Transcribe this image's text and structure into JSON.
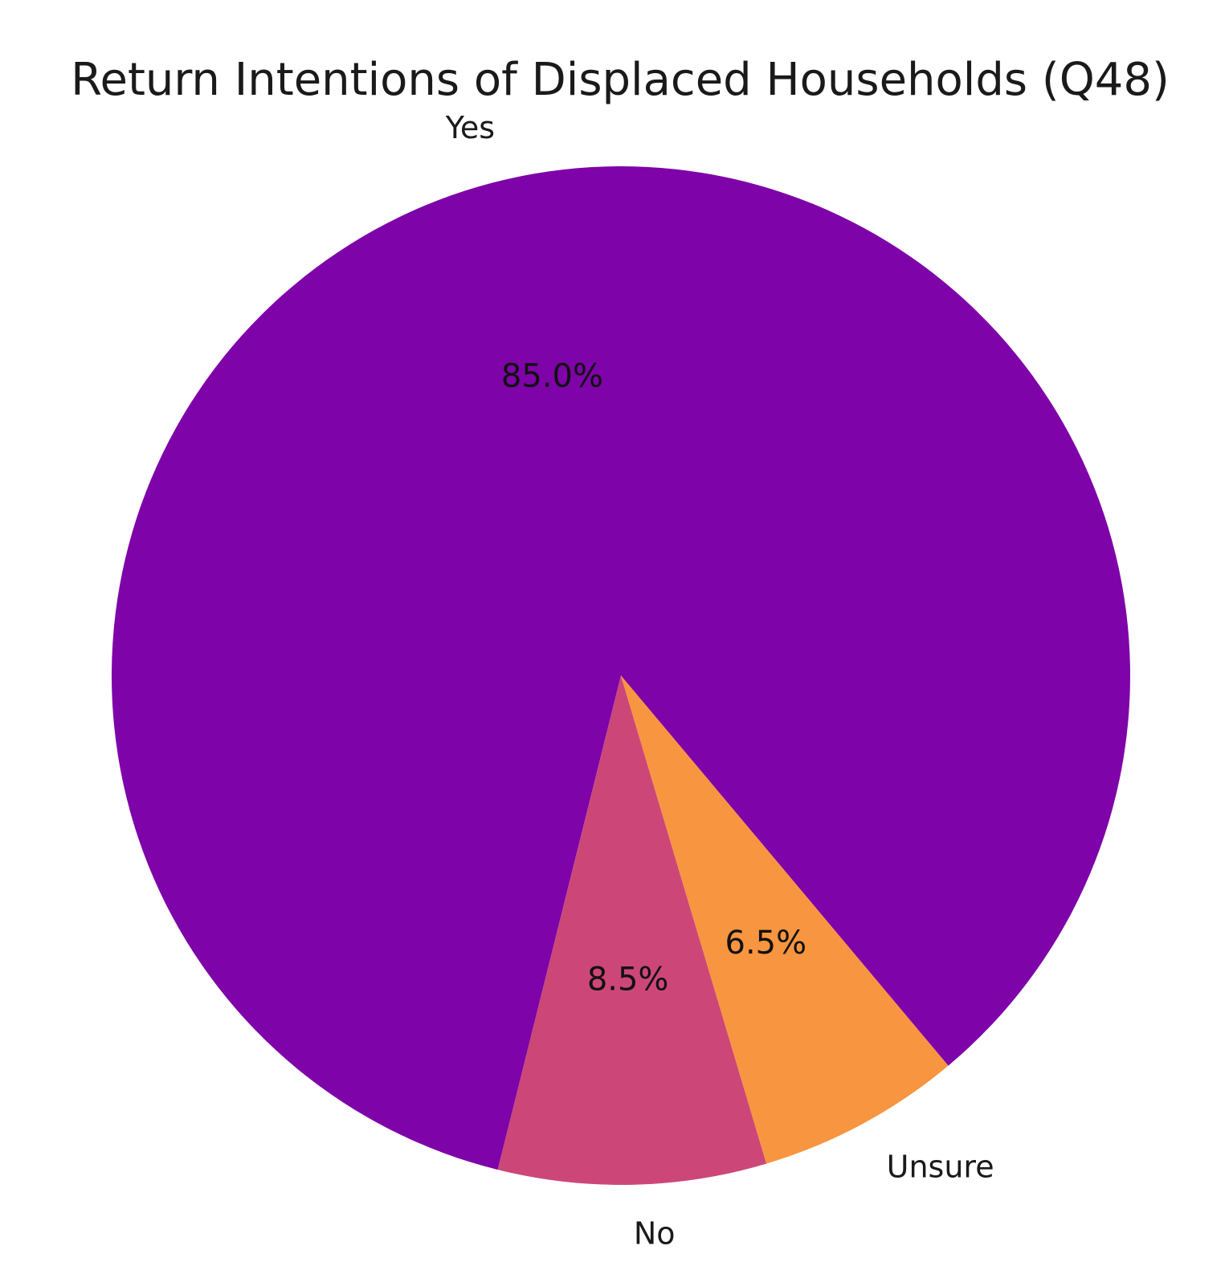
{
  "chart_data": {
    "type": "pie",
    "title": "Return Intentions of Displaced Households (Q48)",
    "slices": [
      {
        "label": "Yes",
        "value": 85.0,
        "pct_label": "85.0%",
        "color": "#7e03a8"
      },
      {
        "label": "No",
        "value": 8.5,
        "pct_label": "8.5%",
        "color": "#cc4778"
      },
      {
        "label": "Unsure",
        "value": 6.5,
        "pct_label": "6.5%",
        "color": "#f89540"
      }
    ],
    "start_angle_deg": -50,
    "direction": "counterclockwise",
    "legend": "none"
  }
}
